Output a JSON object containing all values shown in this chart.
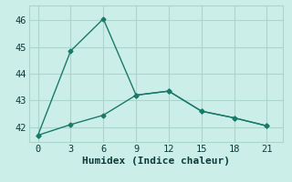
{
  "xlabel": "Humidex (Indice chaleur)",
  "background_color": "#cceee8",
  "grid_color": "#aad4cc",
  "line_color": "#1a7a6a",
  "line1_x": [
    0,
    3,
    6,
    9,
    12,
    15,
    18,
    21
  ],
  "line1_y": [
    41.7,
    44.85,
    46.05,
    43.2,
    43.35,
    42.6,
    42.35,
    42.05
  ],
  "line2_x": [
    0,
    3,
    6,
    9,
    12,
    15,
    18,
    21
  ],
  "line2_y": [
    41.7,
    42.1,
    42.45,
    43.2,
    43.35,
    42.6,
    42.35,
    42.05
  ],
  "xlim": [
    -0.8,
    22.5
  ],
  "ylim": [
    41.45,
    46.55
  ],
  "xticks": [
    0,
    3,
    6,
    9,
    12,
    15,
    18,
    21
  ],
  "yticks": [
    42,
    43,
    44,
    45,
    46
  ],
  "markersize": 2.5,
  "linewidth": 1.0,
  "xlabel_fontsize": 8,
  "tick_fontsize": 7.5
}
